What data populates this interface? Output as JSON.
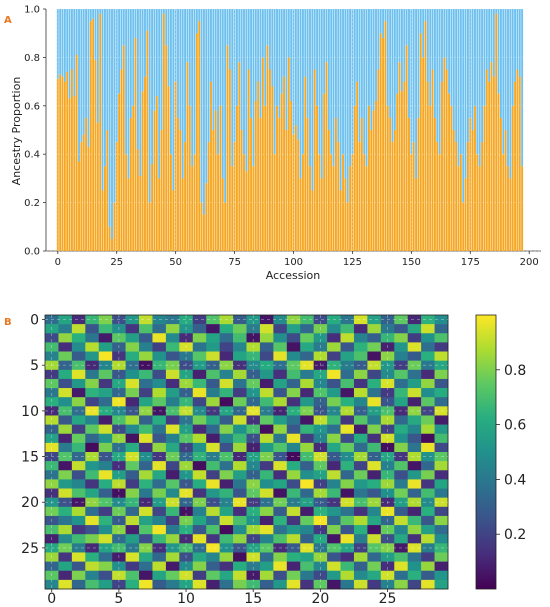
{
  "panels": {
    "a_label": "A",
    "b_label": "B",
    "label_color": "#E87722"
  },
  "chart_data": [
    {
      "type": "bar",
      "stacked": true,
      "xlabel": "Accession",
      "ylabel": "Ancestry Proportion",
      "xlim": [
        -5,
        205
      ],
      "ylim": [
        0,
        1.0
      ],
      "xticks": [
        0,
        25,
        50,
        75,
        100,
        125,
        150,
        175,
        200
      ],
      "yticks": [
        "0.0",
        "0.2",
        "0.4",
        "0.6",
        "0.8",
        "1.0"
      ],
      "grid": true,
      "colors": {
        "lower": "#F5A623",
        "upper": "#6EC1EE"
      },
      "lower_values": [
        0.71,
        0.73,
        0.72,
        0.7,
        0.74,
        0.63,
        0.75,
        0.64,
        0.81,
        0.37,
        0.45,
        0.48,
        0.55,
        0.43,
        0.95,
        0.96,
        0.79,
        0.53,
        0.98,
        0.25,
        0.35,
        0.5,
        0.1,
        0.05,
        0.2,
        0.45,
        0.65,
        0.75,
        0.85,
        0.4,
        0.3,
        0.55,
        0.6,
        0.88,
        0.42,
        0.31,
        0.66,
        0.72,
        0.91,
        0.2,
        0.36,
        0.58,
        0.64,
        0.3,
        0.5,
        0.98,
        0.85,
        0.68,
        0.4,
        0.25,
        0.7,
        0.55,
        0.5,
        0.3,
        0.45,
        0.78,
        0.6,
        0.35,
        0.4,
        0.9,
        0.95,
        0.2,
        0.15,
        0.28,
        0.45,
        0.7,
        0.5,
        0.58,
        0.4,
        0.6,
        0.3,
        0.2,
        0.85,
        0.75,
        0.35,
        0.45,
        0.6,
        0.78,
        0.5,
        0.4,
        0.33,
        0.75,
        0.55,
        0.35,
        0.62,
        0.7,
        0.55,
        0.8,
        0.6,
        0.85,
        0.75,
        0.68,
        0.4,
        0.6,
        0.55,
        0.65,
        0.72,
        0.5,
        0.8,
        0.62,
        0.48,
        0.52,
        0.46,
        0.3,
        0.4,
        0.72,
        0.55,
        0.35,
        0.25,
        0.75,
        0.6,
        0.4,
        0.3,
        0.65,
        0.78,
        0.5,
        0.4,
        0.35,
        0.55,
        0.45,
        0.25,
        0.4,
        0.3,
        0.2,
        0.35,
        0.4,
        0.6,
        0.7,
        0.45,
        0.55,
        0.4,
        0.35,
        0.6,
        0.5,
        0.58,
        0.62,
        0.75,
        0.9,
        0.88,
        0.95,
        0.6,
        0.55,
        0.45,
        0.5,
        0.65,
        0.78,
        0.66,
        0.7,
        0.85,
        0.55,
        0.4,
        0.45,
        0.3,
        0.55,
        0.9,
        0.8,
        0.95,
        0.7,
        0.6,
        0.75,
        0.55,
        0.45,
        0.4,
        0.7,
        0.8,
        0.75,
        0.65,
        0.6,
        0.5,
        0.45,
        0.35,
        0.4,
        0.2,
        0.3,
        0.45,
        0.55,
        0.5,
        0.6,
        0.4,
        0.35,
        0.45,
        0.6,
        0.75,
        0.7,
        0.78,
        0.72,
        0.98,
        0.65,
        0.55,
        0.4,
        0.5,
        0.35,
        0.3,
        0.6,
        0.7,
        0.75,
        0.72,
        0.35
      ]
    },
    {
      "type": "heatmap",
      "rows": 30,
      "cols": 30,
      "xticks": [
        0,
        5,
        10,
        15,
        20,
        25
      ],
      "yticks": [
        0,
        5,
        10,
        15,
        20,
        25
      ],
      "colorbar_ticks": [
        "0.2",
        "0.4",
        "0.6",
        "0.8"
      ],
      "colorbar_range": [
        0.0,
        1.0
      ],
      "colormap": "viridis",
      "grid": true,
      "values": [
        [
          0.35,
          0.58,
          0.12,
          0.66,
          0.8,
          0.24,
          0.53,
          0.91,
          0.45,
          0.39,
          0.61,
          0.18,
          0.72,
          0.87,
          0.29,
          0.54,
          0.06,
          0.47,
          0.83,
          0.69,
          0.22,
          0.61,
          0.39,
          0.94,
          0.57,
          0.31,
          0.75,
          0.11,
          0.64,
          0.48
        ],
        [
          0.58,
          0.42,
          0.9,
          0.26,
          0.67,
          0.49,
          0.15,
          0.71,
          0.35,
          0.83,
          0.52,
          0.3,
          0.06,
          0.61,
          0.77,
          0.41,
          0.93,
          0.2,
          0.57,
          0.34,
          0.79,
          0.47,
          0.68,
          0.12,
          0.85,
          0.4,
          0.27,
          0.6,
          0.92,
          0.33
        ],
        [
          0.22,
          0.83,
          0.63,
          0.39,
          0.07,
          0.74,
          0.56,
          0.28,
          0.97,
          0.47,
          0.12,
          0.8,
          0.58,
          0.35,
          0.69,
          0.05,
          0.84,
          0.49,
          0.23,
          0.76,
          0.53,
          0.13,
          0.9,
          0.44,
          0.3,
          0.66,
          0.81,
          0.18,
          0.5,
          0.71
        ],
        [
          0.69,
          0.13,
          0.48,
          0.89,
          0.56,
          0.31,
          0.81,
          0.43,
          0.19,
          0.67,
          0.94,
          0.38,
          0.54,
          0.2,
          0.46,
          0.88,
          0.31,
          0.73,
          0.05,
          0.6,
          0.41,
          0.85,
          0.27,
          0.64,
          0.78,
          0.09,
          0.52,
          0.95,
          0.36,
          0.17
        ],
        [
          0.44,
          0.77,
          0.29,
          0.53,
          0.99,
          0.15,
          0.62,
          0.84,
          0.51,
          0.26,
          0.4,
          0.73,
          0.92,
          0.11,
          0.58,
          0.66,
          0.22,
          0.96,
          0.47,
          0.33,
          0.88,
          0.19,
          0.57,
          0.71,
          0.05,
          0.82,
          0.43,
          0.28,
          0.63,
          0.9
        ],
        [
          0.86,
          0.32,
          0.7,
          0.11,
          0.45,
          0.88,
          0.37,
          0.04,
          0.66,
          0.79,
          0.23,
          0.55,
          0.31,
          0.82,
          0.14,
          0.47,
          0.61,
          0.36,
          0.75,
          0.96,
          0.07,
          0.64,
          0.42,
          0.29,
          0.91,
          0.53,
          0.18,
          0.77,
          0.4,
          0.59
        ],
        [
          0.17,
          0.61,
          0.95,
          0.4,
          0.74,
          0.27,
          0.5,
          0.67,
          0.23,
          0.92,
          0.58,
          0.09,
          0.71,
          0.44,
          0.86,
          0.3,
          0.53,
          0.14,
          0.69,
          0.41,
          0.6,
          0.98,
          0.35,
          0.82,
          0.21,
          0.47,
          0.73,
          0.37,
          0.12,
          0.8
        ],
        [
          0.75,
          0.24,
          0.53,
          0.81,
          0.16,
          0.6,
          0.94,
          0.36,
          0.48,
          0.13,
          0.85,
          0.67,
          0.28,
          0.93,
          0.39,
          0.76,
          0.08,
          0.57,
          0.32,
          0.87,
          0.46,
          0.25,
          0.7,
          0.15,
          0.63,
          0.94,
          0.36,
          0.55,
          0.83,
          0.27
        ],
        [
          0.4,
          0.93,
          0.07,
          0.64,
          0.57,
          0.33,
          0.79,
          0.19,
          0.88,
          0.55,
          0.3,
          0.97,
          0.42,
          0.65,
          0.18,
          0.52,
          0.9,
          0.26,
          0.81,
          0.11,
          0.72,
          0.54,
          0.06,
          0.89,
          0.38,
          0.17,
          0.66,
          0.92,
          0.48,
          0.61
        ],
        [
          0.63,
          0.49,
          0.82,
          0.2,
          0.35,
          0.98,
          0.11,
          0.58,
          0.74,
          0.42,
          0.66,
          0.21,
          0.85,
          0.03,
          0.77,
          0.34,
          0.68,
          0.87,
          0.14,
          0.54,
          0.31,
          0.79,
          0.63,
          0.45,
          0.97,
          0.26,
          0.58,
          0.09,
          0.74,
          0.35
        ],
        [
          0.12,
          0.7,
          0.36,
          0.97,
          0.62,
          0.45,
          0.26,
          0.83,
          0.05,
          0.7,
          0.91,
          0.47,
          0.16,
          0.59,
          0.33,
          0.96,
          0.41,
          0.1,
          0.63,
          0.8,
          0.25,
          0.46,
          0.88,
          0.3,
          0.56,
          0.71,
          0.12,
          0.83,
          0.2,
          0.94
        ],
        [
          0.89,
          0.27,
          0.59,
          0.44,
          0.08,
          0.71,
          0.86,
          0.31,
          0.62,
          0.17,
          0.39,
          0.78,
          0.6,
          0.29,
          0.92,
          0.14,
          0.75,
          0.55,
          0.38,
          0.06,
          0.91,
          0.68,
          0.15,
          0.73,
          0.42,
          0.87,
          0.34,
          0.6,
          0.77,
          0.08
        ],
        [
          0.31,
          0.85,
          0.19,
          0.74,
          0.92,
          0.22,
          0.47,
          0.69,
          0.38,
          0.95,
          0.56,
          0.12,
          0.34,
          0.81,
          0.5,
          0.7,
          0.04,
          0.83,
          0.27,
          0.65,
          0.52,
          0.36,
          0.97,
          0.08,
          0.8,
          0.19,
          0.61,
          0.45,
          0.86,
          0.53
        ],
        [
          0.57,
          0.1,
          0.76,
          0.33,
          0.51,
          0.84,
          0.05,
          0.95,
          0.27,
          0.43,
          0.73,
          0.88,
          0.08,
          0.46,
          0.67,
          0.24,
          0.89,
          0.39,
          0.97,
          0.18,
          0.44,
          0.82,
          0.23,
          0.61,
          0.14,
          0.93,
          0.5,
          0.27,
          0.03,
          0.69
        ],
        [
          0.96,
          0.41,
          0.66,
          0.03,
          0.79,
          0.37,
          0.62,
          0.14,
          0.83,
          0.6,
          0.19,
          0.51,
          0.94,
          0.25,
          0.85,
          0.09,
          0.54,
          0.72,
          0.45,
          0.84,
          0.12,
          0.59,
          0.76,
          0.35,
          0.68,
          0.04,
          0.81,
          0.39,
          0.97,
          0.22
        ],
        [
          0.21,
          0.72,
          0.34,
          0.87,
          0.26,
          0.6,
          0.93,
          0.49,
          0.16,
          0.77,
          0.34,
          0.65,
          0.42,
          0.71,
          0.11,
          0.57,
          0.8,
          0.26,
          0.02,
          0.69,
          0.93,
          0.28,
          0.48,
          0.86,
          0.31,
          0.59,
          0.16,
          0.88,
          0.51,
          0.74
        ],
        [
          0.67,
          0.06,
          0.91,
          0.52,
          0.43,
          0.13,
          0.75,
          0.32,
          0.96,
          0.21,
          0.85,
          0.04,
          0.69,
          0.37,
          0.88,
          0.46,
          0.17,
          0.94,
          0.61,
          0.3,
          0.75,
          0.11,
          0.64,
          0.2,
          0.95,
          0.43,
          0.72,
          0.06,
          0.34,
          0.86
        ],
        [
          0.38,
          0.8,
          0.24,
          0.68,
          0.97,
          0.55,
          0.29,
          0.86,
          0.59,
          0.08,
          0.52,
          0.91,
          0.19,
          0.8,
          0.56,
          0.31,
          0.66,
          0.13,
          0.84,
          0.49,
          0.57,
          0.9,
          0.33,
          0.77,
          0.09,
          0.66,
          0.24,
          0.53,
          0.79,
          0.13
        ],
        [
          0.83,
          0.54,
          0.45,
          0.15,
          0.62,
          0.9,
          0.18,
          0.64,
          0.35,
          0.73,
          0.27,
          0.62,
          0.97,
          0.09,
          0.39,
          0.82,
          0.49,
          0.58,
          0.23,
          0.99,
          0.19,
          0.44,
          0.81,
          0.53,
          0.62,
          0.85,
          0.41,
          0.97,
          0.15,
          0.58
        ],
        [
          0.14,
          0.93,
          0.71,
          0.58,
          0.3,
          0.04,
          0.81,
          0.4,
          0.79,
          0.47,
          0.96,
          0.15,
          0.53,
          0.65,
          0.26,
          0.75,
          0.93,
          0.05,
          0.67,
          0.34,
          0.86,
          0.67,
          0.05,
          0.39,
          0.27,
          0.5,
          0.78,
          0.32,
          0.69,
          0.4
        ],
        [
          0.52,
          0.25,
          0.06,
          0.83,
          0.72,
          0.47,
          0.66,
          0.11,
          0.55,
          0.92,
          0.33,
          0.8,
          0.24,
          0.44,
          0.97,
          0.17,
          0.37,
          0.78,
          0.42,
          0.57,
          0.28,
          0.15,
          0.93,
          0.7,
          0.85,
          0.12,
          0.56,
          0.88,
          0.47,
          0.92
        ],
        [
          0.78,
          0.63,
          0.87,
          0.36,
          0.18,
          0.77,
          0.34,
          0.93,
          0.21,
          0.66,
          0.05,
          0.43,
          0.89,
          0.58,
          0.13,
          0.63,
          0.82,
          0.29,
          0.91,
          0.08,
          0.64,
          0.52,
          0.38,
          0.14,
          0.46,
          0.97,
          0.29,
          0.1,
          0.63,
          0.21
        ],
        [
          0.26,
          0.39,
          0.51,
          0.96,
          0.64,
          0.28,
          0.9,
          0.57,
          0.44,
          0.18,
          0.79,
          0.58,
          0.35,
          0.92,
          0.7,
          0.51,
          0.09,
          0.64,
          0.15,
          0.76,
          0.99,
          0.34,
          0.74,
          0.88,
          0.59,
          0.33,
          0.91,
          0.67,
          0.27,
          0.82
        ],
        [
          0.7,
          0.87,
          0.16,
          0.25,
          0.49,
          0.82,
          0.09,
          0.72,
          0.98,
          0.4,
          0.63,
          0.27,
          0.71,
          0.03,
          0.48,
          0.86,
          0.96,
          0.38,
          0.53,
          0.45,
          0.17,
          0.8,
          0.26,
          0.63,
          0.06,
          0.76,
          0.45,
          0.83,
          0.56,
          0.35
        ],
        [
          0.09,
          0.47,
          0.68,
          0.79,
          0.93,
          0.35,
          0.55,
          0.24,
          0.67,
          0.84,
          0.12,
          0.96,
          0.16,
          0.68,
          0.83,
          0.2,
          0.44,
          0.71,
          0.89,
          0.31,
          0.61,
          0.06,
          0.97,
          0.41,
          0.92,
          0.24,
          0.6,
          0.14,
          0.89,
          0.48
        ],
        [
          0.6,
          0.78,
          0.42,
          0.11,
          0.57,
          0.69,
          0.4,
          0.81,
          0.13,
          0.52,
          0.7,
          0.36,
          0.99,
          0.5,
          0.26,
          0.58,
          0.74,
          0.12,
          0.28,
          0.95,
          0.39,
          0.72,
          0.59,
          0.19,
          0.73,
          0.81,
          0.07,
          0.95,
          0.42,
          0.66
        ],
        [
          0.85,
          0.16,
          0.94,
          0.63,
          0.35,
          0.08,
          0.94,
          0.6,
          0.33,
          0.86,
          0.24,
          0.6,
          0.46,
          0.84,
          0.04,
          0.93,
          0.35,
          0.81,
          0.63,
          0.57,
          0.84,
          0.26,
          0.13,
          0.86,
          0.34,
          0.55,
          0.7,
          0.38,
          0.18,
          0.77
        ],
        [
          0.32,
          0.58,
          0.27,
          0.9,
          0.81,
          0.49,
          0.17,
          0.36,
          0.9,
          0.07,
          0.48,
          0.81,
          0.3,
          0.14,
          0.62,
          0.41,
          0.55,
          0.97,
          0.1,
          0.7,
          0.46,
          0.93,
          0.67,
          0.31,
          0.78,
          0.13,
          0.95,
          0.5,
          0.84,
          0.09
        ],
        [
          0.74,
          0.11,
          0.8,
          0.44,
          0.24,
          0.91,
          0.71,
          0.06,
          0.58,
          0.76,
          0.93,
          0.18,
          0.75,
          0.59,
          0.91,
          0.07,
          0.86,
          0.24,
          0.78,
          0.4,
          0.22,
          0.54,
          0.88,
          0.47,
          0.6,
          0.93,
          0.36,
          0.63,
          0.29,
          0.52
        ],
        [
          0.46,
          0.95,
          0.33,
          0.7,
          0.55,
          0.2,
          0.63,
          0.98,
          0.29,
          0.41,
          0.58,
          0.95,
          0.09,
          0.37,
          0.79,
          0.68,
          0.3,
          0.53,
          0.96,
          0.15,
          0.75,
          0.06,
          0.4,
          0.92,
          0.17,
          0.44,
          0.82,
          0.21,
          0.96,
          0.57
        ]
      ]
    }
  ]
}
